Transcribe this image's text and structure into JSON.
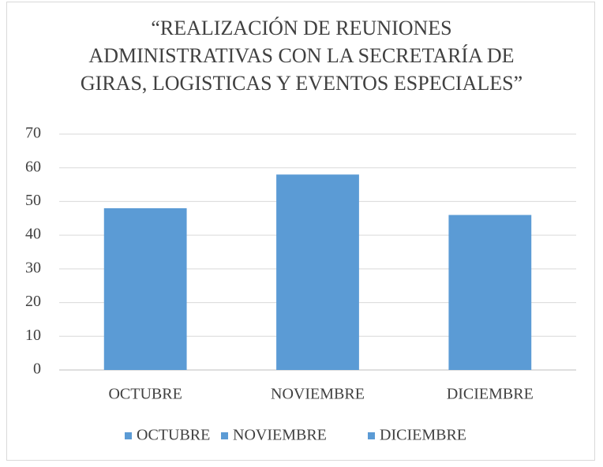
{
  "chart_data": {
    "type": "bar",
    "title": "“REALIZACIÓN DE REUNIONES ADMINISTRATIVAS CON LA SECRETARÍA DE GIRAS, LOGISTICAS Y EVENTOS ESPECIALES”",
    "categories": [
      "OCTUBRE",
      "NOVIEMBRE",
      "DICIEMBRE"
    ],
    "values": [
      48,
      58,
      46
    ],
    "color": "#5b9bd5",
    "ylim": [
      0,
      70
    ],
    "yticks": [
      0,
      10,
      20,
      30,
      40,
      50,
      60,
      70
    ],
    "grid": true,
    "legend": "bottom"
  }
}
